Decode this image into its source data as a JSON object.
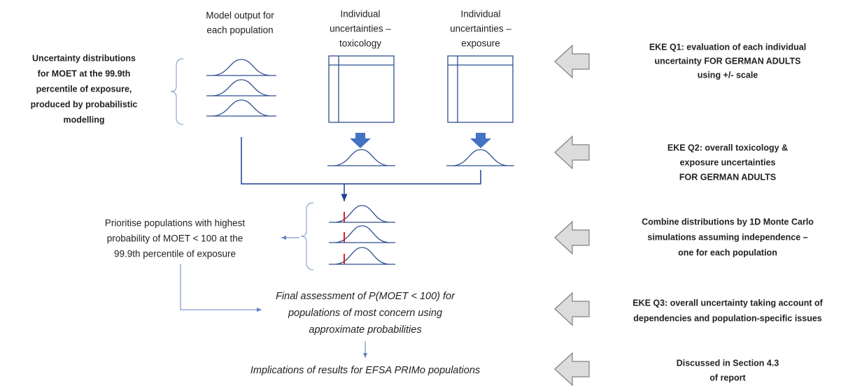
{
  "column_headers": [
    {
      "lines": [
        "Model output for",
        "each population"
      ]
    },
    {
      "lines": [
        "Individual",
        "uncertainties –",
        "toxicology"
      ]
    },
    {
      "lines": [
        "Individual",
        "uncertainties –",
        "exposure"
      ]
    }
  ],
  "left_note": {
    "lines": [
      "Uncertainty distributions",
      "for MOET at the 99.9th",
      "percentile of exposure,",
      "produced by probabilistic",
      "modelling"
    ]
  },
  "prioritise_note": {
    "lines": [
      "Prioritise populations with highest",
      "probability of MOET < 100 at the",
      "99.9th percentile of exposure"
    ]
  },
  "final_assessment": {
    "lines": [
      "Final assessment of P(MOET < 100) for",
      "populations of most concern using",
      "approximate probabilities"
    ]
  },
  "implications": {
    "lines": [
      "Implications of results for EFSA PRIMo populations"
    ]
  },
  "steps": [
    {
      "lines": [
        "EKE Q1: evaluation of each individual",
        "uncertainty FOR GERMAN ADULTS",
        "using +/- scale"
      ]
    },
    {
      "lines": [
        "EKE Q2: overall toxicology &",
        "exposure uncertainties",
        "FOR GERMAN ADULTS"
      ]
    },
    {
      "lines": [
        "Combine distributions by 1D Monte Carlo",
        "simulations assuming independence –",
        "one for each population"
      ]
    },
    {
      "lines": [
        "EKE Q3: overall uncertainty taking account of",
        "dependencies and population-specific issues"
      ]
    },
    {
      "lines": [
        "Discussed in Section 4.3",
        "of report"
      ]
    }
  ]
}
